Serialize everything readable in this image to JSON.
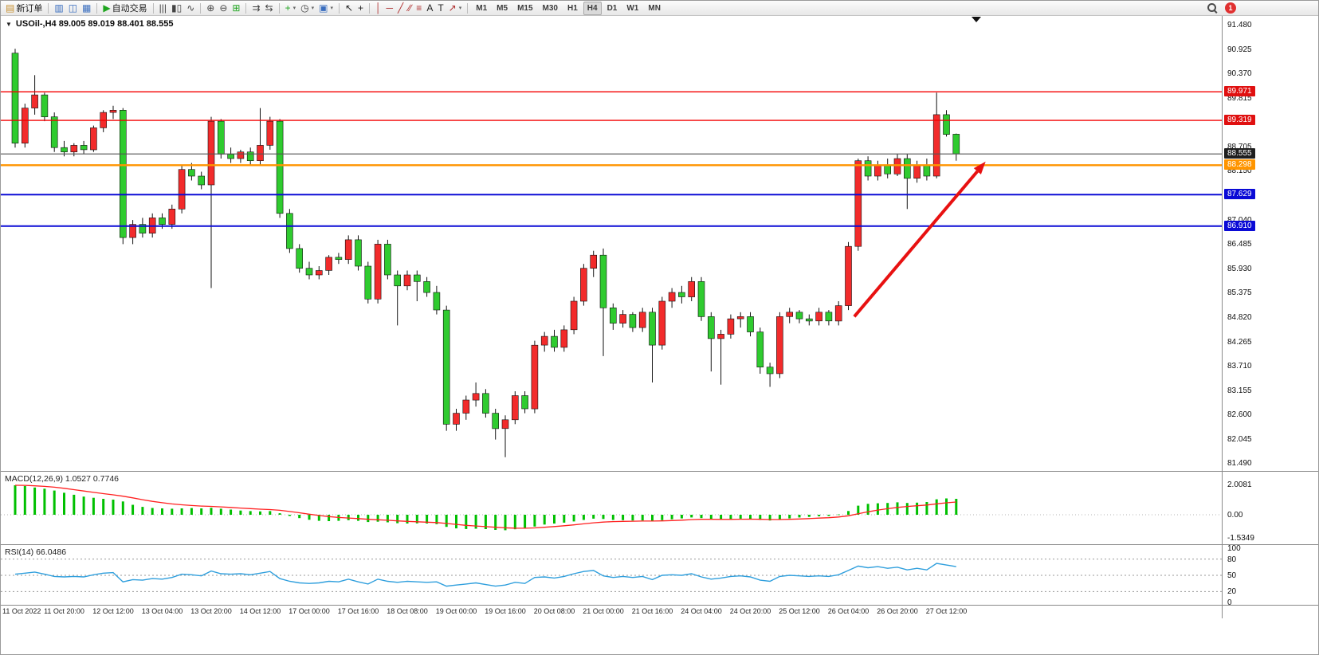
{
  "toolbar": {
    "notification_count": "1",
    "groups": [
      {
        "items": [
          {
            "name": "new-order-button",
            "glyph": "▤",
            "glyph_color": "#c78f2e",
            "label": "新订单"
          }
        ]
      },
      {
        "items": [
          {
            "name": "market-watch-icon",
            "glyph": "▥",
            "glyph_color": "#3a6ebf"
          },
          {
            "name": "data-window-icon",
            "glyph": "◫",
            "glyph_color": "#3a6ebf"
          },
          {
            "name": "navigator-icon",
            "glyph": "▦",
            "glyph_color": "#3a6ebf"
          }
        ]
      },
      {
        "items": [
          {
            "name": "autotrading-button",
            "glyph": "▶",
            "glyph_color": "#1fa51f",
            "label": "自动交易"
          }
        ]
      },
      {
        "items": [
          {
            "name": "bar-chart-icon",
            "glyph": "|||"
          },
          {
            "name": "candlestick-chart-icon",
            "glyph": "▮▯"
          },
          {
            "name": "line-chart-icon",
            "glyph": "∿"
          }
        ]
      },
      {
        "items": [
          {
            "name": "zoom-in-icon",
            "glyph": "⊕"
          },
          {
            "name": "zoom-out-icon",
            "glyph": "⊖"
          },
          {
            "name": "tile-windows-icon",
            "glyph": "⊞",
            "glyph_color": "#1fa51f"
          }
        ]
      },
      {
        "items": [
          {
            "name": "auto-scroll-icon",
            "glyph": "⇉"
          },
          {
            "name": "chart-shift-icon",
            "glyph": "⇆"
          }
        ]
      },
      {
        "items": [
          {
            "name": "indicators-add-button",
            "glyph": "+",
            "glyph_color": "#1fa51f",
            "caret": true
          },
          {
            "name": "periods-button",
            "glyph": "◷",
            "caret": true
          },
          {
            "name": "templates-button",
            "glyph": "▣",
            "glyph_color": "#3a6ebf",
            "caret": true
          }
        ]
      },
      {
        "items": [
          {
            "name": "cursor-icon",
            "glyph": "↖",
            "glyph_color": "#222222"
          },
          {
            "name": "crosshair-icon",
            "glyph": "+",
            "glyph_color": "#222222"
          }
        ]
      },
      {
        "items": [
          {
            "name": "vertical-line-icon",
            "glyph": "│",
            "glyph_color": "#b03030"
          },
          {
            "name": "horizontal-line-icon",
            "glyph": "─",
            "glyph_color": "#b03030"
          },
          {
            "name": "trendline-icon",
            "glyph": "╱",
            "glyph_color": "#b03030"
          },
          {
            "name": "equidistant-channel-icon",
            "glyph": "∕∕",
            "glyph_color": "#b03030"
          },
          {
            "name": "fibonacci-icon",
            "glyph": "≡",
            "glyph_color": "#b03030"
          },
          {
            "name": "text-icon",
            "glyph": "A",
            "glyph_color": "#222222"
          },
          {
            "name": "text-label-icon",
            "glyph": "T",
            "glyph_color": "#222222"
          },
          {
            "name": "arrows-icon",
            "glyph": "↗",
            "glyph_color": "#b03030",
            "caret": true
          }
        ]
      }
    ],
    "timeframes": {
      "items": [
        "M1",
        "M5",
        "M15",
        "M30",
        "H1",
        "H4",
        "D1",
        "W1",
        "MN"
      ],
      "active": "H4"
    }
  },
  "chart_data": {
    "type": "candlestick",
    "symbol": "USOil-",
    "period": "H4",
    "header": "USOil-,H4 89.005 89.019 88.401 88.555",
    "collapse_icon": "▼",
    "current_ohlc": {
      "open": 89.005,
      "high": 89.019,
      "low": 88.401,
      "close": 88.555
    },
    "up_color": "#f22b2b",
    "down_color": "#2fcb2f",
    "candles": [
      [
        90.85,
        90.95,
        88.7,
        88.8
      ],
      [
        88.8,
        89.7,
        88.7,
        89.6
      ],
      [
        89.6,
        90.35,
        89.45,
        89.9
      ],
      [
        89.9,
        89.95,
        89.3,
        89.4
      ],
      [
        89.4,
        89.5,
        88.6,
        88.7
      ],
      [
        88.7,
        88.85,
        88.5,
        88.6
      ],
      [
        88.6,
        88.8,
        88.5,
        88.75
      ],
      [
        88.75,
        88.85,
        88.55,
        88.65
      ],
      [
        88.65,
        89.2,
        88.6,
        89.15
      ],
      [
        89.15,
        89.55,
        89.05,
        89.5
      ],
      [
        89.5,
        89.65,
        89.35,
        89.55
      ],
      [
        89.55,
        89.6,
        86.5,
        86.65
      ],
      [
        86.65,
        87.05,
        86.5,
        86.95
      ],
      [
        86.95,
        87.1,
        86.65,
        86.75
      ],
      [
        86.75,
        87.2,
        86.65,
        87.1
      ],
      [
        87.1,
        87.2,
        86.85,
        86.95
      ],
      [
        86.95,
        87.4,
        86.85,
        87.3
      ],
      [
        87.3,
        88.3,
        87.2,
        88.2
      ],
      [
        88.2,
        88.35,
        87.95,
        88.05
      ],
      [
        88.05,
        88.15,
        87.75,
        87.85
      ],
      [
        87.85,
        89.4,
        85.5,
        89.3
      ],
      [
        89.3,
        89.35,
        88.45,
        88.55
      ],
      [
        88.55,
        88.7,
        88.35,
        88.45
      ],
      [
        88.45,
        88.65,
        88.35,
        88.6
      ],
      [
        88.6,
        88.7,
        88.3,
        88.4
      ],
      [
        88.4,
        89.6,
        88.3,
        88.75
      ],
      [
        88.75,
        89.4,
        88.65,
        89.3
      ],
      [
        89.3,
        89.35,
        87.1,
        87.2
      ],
      [
        87.2,
        87.3,
        86.3,
        86.4
      ],
      [
        86.4,
        86.5,
        85.85,
        85.95
      ],
      [
        85.95,
        86.1,
        85.7,
        85.8
      ],
      [
        85.8,
        86.0,
        85.7,
        85.9
      ],
      [
        85.9,
        86.25,
        85.8,
        86.2
      ],
      [
        86.2,
        86.3,
        86.05,
        86.15
      ],
      [
        86.15,
        86.7,
        86.05,
        86.6
      ],
      [
        86.6,
        86.7,
        85.9,
        86.0
      ],
      [
        86.0,
        86.1,
        85.15,
        85.25
      ],
      [
        85.25,
        86.6,
        85.15,
        86.5
      ],
      [
        86.5,
        86.6,
        85.7,
        85.8
      ],
      [
        85.8,
        85.9,
        84.65,
        85.55
      ],
      [
        85.55,
        85.9,
        85.45,
        85.8
      ],
      [
        85.8,
        85.9,
        85.2,
        85.65
      ],
      [
        85.65,
        85.75,
        85.3,
        85.4
      ],
      [
        85.4,
        85.55,
        84.9,
        85.0
      ],
      [
        85.0,
        85.1,
        82.25,
        82.4
      ],
      [
        82.4,
        82.75,
        82.25,
        82.65
      ],
      [
        82.65,
        83.05,
        82.5,
        82.95
      ],
      [
        82.95,
        83.35,
        82.8,
        83.1
      ],
      [
        83.1,
        83.2,
        82.55,
        82.65
      ],
      [
        82.65,
        82.75,
        82.05,
        82.3
      ],
      [
        82.3,
        82.6,
        81.65,
        82.5
      ],
      [
        82.5,
        83.15,
        82.4,
        83.05
      ],
      [
        83.05,
        83.15,
        82.65,
        82.75
      ],
      [
        82.75,
        84.3,
        82.65,
        84.2
      ],
      [
        84.2,
        84.5,
        84.05,
        84.4
      ],
      [
        84.4,
        84.55,
        84.05,
        84.15
      ],
      [
        84.15,
        84.65,
        84.05,
        84.55
      ],
      [
        84.55,
        85.3,
        84.45,
        85.2
      ],
      [
        85.2,
        86.05,
        85.1,
        85.95
      ],
      [
        85.95,
        86.35,
        85.75,
        86.25
      ],
      [
        86.25,
        86.4,
        83.95,
        85.05
      ],
      [
        85.05,
        85.15,
        84.55,
        84.7
      ],
      [
        84.7,
        85.0,
        84.6,
        84.9
      ],
      [
        84.9,
        84.95,
        84.5,
        84.6
      ],
      [
        84.6,
        85.05,
        84.5,
        84.95
      ],
      [
        84.95,
        85.05,
        83.35,
        84.2
      ],
      [
        84.2,
        85.3,
        84.1,
        85.2
      ],
      [
        85.2,
        85.5,
        85.05,
        85.4
      ],
      [
        85.4,
        85.55,
        85.15,
        85.3
      ],
      [
        85.3,
        85.75,
        85.2,
        85.65
      ],
      [
        85.65,
        85.75,
        84.75,
        84.85
      ],
      [
        84.85,
        84.95,
        83.6,
        84.35
      ],
      [
        84.35,
        84.55,
        83.3,
        84.45
      ],
      [
        84.45,
        84.9,
        84.35,
        84.8
      ],
      [
        84.8,
        84.95,
        84.6,
        84.85
      ],
      [
        84.85,
        84.95,
        84.4,
        84.5
      ],
      [
        84.5,
        84.6,
        83.55,
        83.7
      ],
      [
        83.7,
        83.8,
        83.25,
        83.55
      ],
      [
        83.55,
        84.95,
        83.45,
        84.85
      ],
      [
        84.85,
        85.05,
        84.7,
        84.95
      ],
      [
        84.95,
        85.0,
        84.7,
        84.8
      ],
      [
        84.8,
        84.9,
        84.65,
        84.75
      ],
      [
        84.75,
        85.05,
        84.65,
        84.95
      ],
      [
        84.95,
        85.0,
        84.65,
        84.75
      ],
      [
        84.75,
        85.2,
        84.65,
        85.1
      ],
      [
        85.1,
        86.55,
        85.0,
        86.45
      ],
      [
        86.45,
        88.45,
        86.35,
        88.4
      ],
      [
        88.4,
        88.5,
        87.95,
        88.05
      ],
      [
        88.05,
        88.4,
        87.95,
        88.3
      ],
      [
        88.3,
        88.45,
        88.0,
        88.1
      ],
      [
        88.1,
        88.55,
        88.05,
        88.45
      ],
      [
        88.45,
        88.55,
        87.3,
        88.0
      ],
      [
        88.0,
        88.4,
        87.9,
        88.3
      ],
      [
        88.3,
        88.45,
        87.95,
        88.05
      ],
      [
        88.05,
        89.95,
        88.0,
        89.45
      ],
      [
        89.45,
        89.55,
        88.95,
        89.0
      ],
      [
        89.005,
        89.019,
        88.401,
        88.555
      ]
    ],
    "time_labels": [
      "11 Oct 2022",
      "11 Oct 20:00",
      "12 Oct 12:00",
      "13 Oct 04:00",
      "13 Oct 20:00",
      "14 Oct 12:00",
      "17 Oct 00:00",
      "17 Oct 16:00",
      "18 Oct 08:00",
      "19 Oct 00:00",
      "19 Oct 16:00",
      "20 Oct 08:00",
      "21 Oct 00:00",
      "21 Oct 16:00",
      "24 Oct 04:00",
      "24 Oct 20:00",
      "25 Oct 12:00",
      "26 Oct 04:00",
      "26 Oct 20:00",
      "27 Oct 12:00"
    ],
    "price_axis_labels": [
      "91.480",
      "90.925",
      "90.370",
      "89.815",
      "88.705",
      "88.150",
      "87.040",
      "86.485",
      "85.930",
      "85.375",
      "84.820",
      "84.265",
      "83.710",
      "83.155",
      "82.600",
      "82.045",
      "81.490"
    ],
    "horizontal_lines": [
      {
        "price": 89.971,
        "label": "89.971",
        "color": "#f40000",
        "width": 1.4,
        "badge": "#e01010"
      },
      {
        "price": 89.319,
        "label": "89.319",
        "color": "#f40000",
        "width": 1.4,
        "badge": "#e01010"
      },
      {
        "price": 88.555,
        "label": "88.555",
        "color": "#555555",
        "width": 1.1,
        "badge": "#1f1f1f"
      },
      {
        "price": 88.298,
        "label": "88.298",
        "color": "#ff9500",
        "width": 2.4,
        "badge": "#ff9500"
      },
      {
        "price": 87.629,
        "label": "87.629",
        "color": "#0b0bd6",
        "width": 2,
        "badge": "#0b0bd6"
      },
      {
        "price": 86.91,
        "label": "86.910",
        "color": "#0b0bd6",
        "width": 2,
        "badge": "#0b0bd6"
      }
    ],
    "arrow": {
      "from": {
        "bar": 85.6,
        "price": 84.85
      },
      "to": {
        "bar": 99,
        "price": 88.38
      },
      "color": "#e81111",
      "width": 4
    },
    "indicators": [
      {
        "name": "MACD",
        "label": "MACD(12,26,9) 1.0527 0.7746",
        "params": "12,26,9",
        "value": 1.0527,
        "signal": 0.7746,
        "histogram_color": "#00c000",
        "signal_color": "#ff2020",
        "axis_lab": [
          "2.0081",
          "0.00",
          "-1.5349"
        ],
        "values": [
          1.95,
          1.9,
          1.8,
          1.72,
          1.6,
          1.45,
          1.32,
          1.2,
          1.12,
          1.05,
          1.0,
          0.88,
          0.66,
          0.52,
          0.45,
          0.42,
          0.4,
          0.42,
          0.44,
          0.42,
          0.46,
          0.4,
          0.34,
          0.28,
          0.24,
          0.22,
          0.24,
          0.1,
          -0.08,
          -0.22,
          -0.33,
          -0.4,
          -0.42,
          -0.4,
          -0.36,
          -0.4,
          -0.48,
          -0.46,
          -0.5,
          -0.56,
          -0.58,
          -0.57,
          -0.58,
          -0.62,
          -0.8,
          -0.9,
          -0.94,
          -0.92,
          -0.95,
          -1.0,
          -1.02,
          -0.96,
          -0.92,
          -0.78,
          -0.65,
          -0.58,
          -0.52,
          -0.44,
          -0.34,
          -0.26,
          -0.28,
          -0.34,
          -0.36,
          -0.38,
          -0.38,
          -0.42,
          -0.36,
          -0.3,
          -0.24,
          -0.18,
          -0.22,
          -0.3,
          -0.32,
          -0.3,
          -0.26,
          -0.28,
          -0.34,
          -0.38,
          -0.32,
          -0.24,
          -0.18,
          -0.14,
          -0.1,
          -0.08,
          0.02,
          0.25,
          0.6,
          0.72,
          0.76,
          0.78,
          0.82,
          0.78,
          0.8,
          0.84,
          1.02,
          1.08,
          1.05
        ]
      },
      {
        "name": "RSI",
        "label": "RSI(14) 66.0486",
        "period": 14,
        "value": 66.0486,
        "line_color": "#2f9fdd",
        "levels": [
          80,
          50,
          20
        ],
        "axis_lab": [
          "100",
          "80",
          "50",
          "20",
          "0"
        ],
        "values": [
          52,
          54,
          56,
          52,
          48,
          47,
          48,
          47,
          51,
          54,
          55,
          38,
          42,
          41,
          44,
          43,
          46,
          52,
          51,
          49,
          58,
          53,
          52,
          53,
          51,
          54,
          57,
          44,
          39,
          36,
          35,
          36,
          39,
          38,
          43,
          38,
          34,
          43,
          39,
          37,
          39,
          38,
          37,
          38,
          30,
          32,
          34,
          36,
          33,
          30,
          32,
          37,
          35,
          46,
          47,
          45,
          48,
          53,
          57,
          59,
          49,
          46,
          48,
          46,
          48,
          42,
          50,
          51,
          50,
          53,
          47,
          43,
          45,
          48,
          49,
          47,
          41,
          39,
          48,
          50,
          49,
          48,
          49,
          48,
          51,
          59,
          67,
          64,
          66,
          63,
          65,
          60,
          63,
          60,
          72,
          69,
          66
        ]
      }
    ]
  }
}
